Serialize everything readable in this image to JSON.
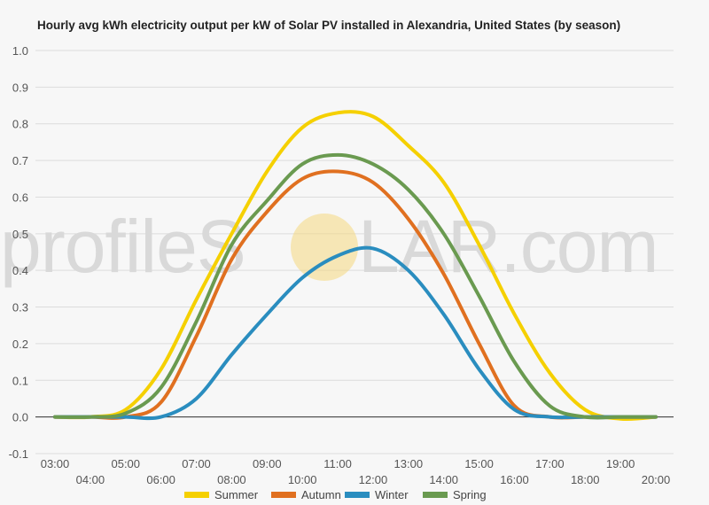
{
  "chart_data": {
    "type": "line",
    "title": "Hourly avg kWh electricity output per kW of Solar PV installed in Alexandria, United States (by season)",
    "xlabel": "",
    "ylabel": "",
    "watermark": {
      "left": "profileS",
      "right": "LAR.com",
      "sun_color": "#f6d880"
    },
    "x": [
      "03:00",
      "04:00",
      "05:00",
      "06:00",
      "07:00",
      "08:00",
      "09:00",
      "10:00",
      "11:00",
      "12:00",
      "13:00",
      "14:00",
      "15:00",
      "16:00",
      "17:00",
      "18:00",
      "19:00",
      "20:00"
    ],
    "x_ticks_top": [
      "03:00",
      "05:00",
      "07:00",
      "09:00",
      "11:00",
      "13:00",
      "15:00",
      "17:00",
      "19:00"
    ],
    "x_ticks_bottom": [
      "04:00",
      "06:00",
      "08:00",
      "10:00",
      "12:00",
      "14:00",
      "16:00",
      "18:00",
      "20:00"
    ],
    "y_ticks": [
      "1.0",
      "0.9",
      "0.8",
      "0.7",
      "0.6",
      "0.5",
      "0.4",
      "0.3",
      "0.2",
      "0.1",
      "0.0",
      "-0.1"
    ],
    "ylim": [
      -0.1,
      1.0
    ],
    "grid": true,
    "legend_position": "bottom",
    "series": [
      {
        "name": "Summer",
        "color": "#f5d000",
        "values": [
          0,
          0,
          0.02,
          0.13,
          0.32,
          0.5,
          0.67,
          0.79,
          0.83,
          0.82,
          0.74,
          0.64,
          0.47,
          0.28,
          0.12,
          0.02,
          -0.005,
          0
        ]
      },
      {
        "name": "Autumn",
        "color": "#e07020",
        "values": [
          0,
          0,
          0,
          0.04,
          0.22,
          0.43,
          0.56,
          0.65,
          0.67,
          0.64,
          0.54,
          0.39,
          0.2,
          0.03,
          0,
          0,
          0,
          0
        ]
      },
      {
        "name": "Winter",
        "color": "#2a8dbf",
        "values": [
          0,
          0,
          0,
          0,
          0.05,
          0.17,
          0.28,
          0.38,
          0.44,
          0.46,
          0.4,
          0.28,
          0.13,
          0.02,
          0,
          0,
          0,
          0
        ]
      },
      {
        "name": "Spring",
        "color": "#6a9a50",
        "values": [
          0,
          0,
          0.01,
          0.08,
          0.26,
          0.47,
          0.59,
          0.69,
          0.715,
          0.69,
          0.62,
          0.5,
          0.33,
          0.15,
          0.03,
          0,
          0,
          0
        ]
      }
    ]
  }
}
